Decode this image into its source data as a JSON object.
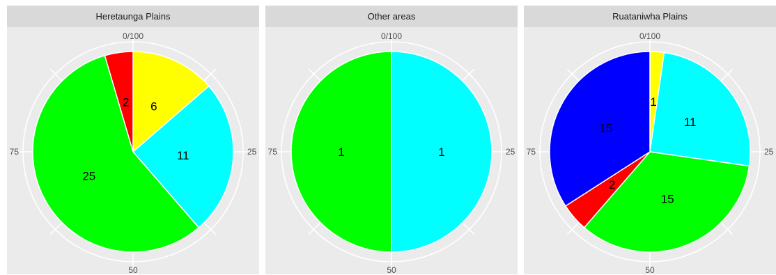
{
  "chart_data": [
    {
      "type": "pie",
      "title": "Heretaunga Plains",
      "theta_ticks": [
        "0/100",
        "25",
        "50",
        "75"
      ],
      "slices": [
        {
          "label": "6",
          "value": 6,
          "color": "#ffff00"
        },
        {
          "label": "11",
          "value": 11,
          "color": "#00ffff"
        },
        {
          "label": "25",
          "value": 25,
          "color": "#00ff00"
        },
        {
          "label": "2",
          "value": 2,
          "color": "#ff0000"
        }
      ]
    },
    {
      "type": "pie",
      "title": "Other areas",
      "theta_ticks": [
        "0/100",
        "25",
        "50",
        "75"
      ],
      "slices": [
        {
          "label": "1",
          "value": 1,
          "color": "#00ffff"
        },
        {
          "label": "1",
          "value": 1,
          "color": "#00ff00"
        }
      ]
    },
    {
      "type": "pie",
      "title": "Ruataniwha Plains",
      "theta_ticks": [
        "0/100",
        "25",
        "50",
        "75"
      ],
      "slices": [
        {
          "label": "1",
          "value": 1,
          "color": "#ffff00"
        },
        {
          "label": "11",
          "value": 11,
          "color": "#00ffff"
        },
        {
          "label": "15",
          "value": 15,
          "color": "#00ff00"
        },
        {
          "label": "2",
          "value": 2,
          "color": "#ff0000"
        },
        {
          "label": "15",
          "value": 15,
          "color": "#0000ff"
        }
      ]
    }
  ]
}
